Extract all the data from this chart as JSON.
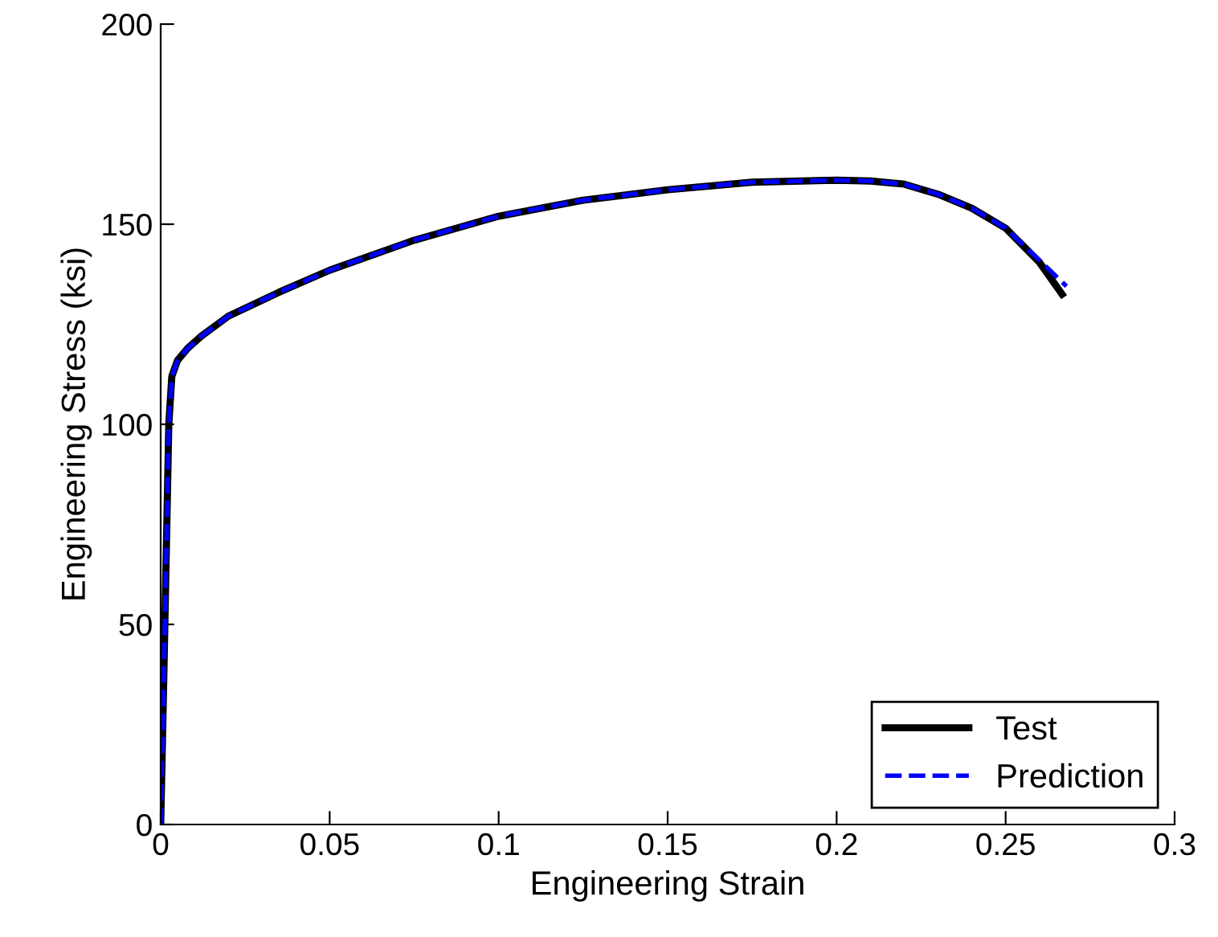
{
  "chart_data": {
    "type": "line",
    "xlabel": "Engineering Strain",
    "ylabel": "Engineering Stress (ksi)",
    "xlim": [
      0,
      0.3
    ],
    "ylim": [
      0,
      200
    ],
    "xticks": [
      0,
      0.05,
      0.1,
      0.15,
      0.2,
      0.25,
      0.3
    ],
    "yticks": [
      0,
      50,
      100,
      150,
      200
    ],
    "grid": false,
    "legend": "bottom right",
    "series": [
      {
        "name": "Test",
        "color": "#000000",
        "line_style": "solid",
        "x": [
          0,
          0.001,
          0.0024,
          0.0033,
          0.005,
          0.008,
          0.012,
          0.02,
          0.035,
          0.05,
          0.075,
          0.1,
          0.125,
          0.15,
          0.175,
          0.2,
          0.21,
          0.22,
          0.23,
          0.24,
          0.25,
          0.26,
          0.2667
        ],
        "values": [
          0,
          40,
          100,
          112,
          116,
          119,
          122,
          127,
          133,
          138.5,
          146,
          152,
          156,
          158.6,
          160.5,
          161,
          160.8,
          160,
          157.5,
          154,
          149,
          140.5,
          132.5
        ]
      },
      {
        "name": "Prediction",
        "color": "#0000ff",
        "line_style": "dashed",
        "x": [
          0,
          0.001,
          0.0024,
          0.0033,
          0.005,
          0.008,
          0.012,
          0.02,
          0.035,
          0.05,
          0.075,
          0.1,
          0.125,
          0.15,
          0.175,
          0.2,
          0.21,
          0.22,
          0.23,
          0.24,
          0.25,
          0.26,
          0.268
        ],
        "values": [
          0,
          40,
          100,
          112,
          116,
          119,
          122,
          127,
          133,
          138.5,
          146,
          152,
          156,
          158.6,
          160.5,
          161,
          160.8,
          160,
          157.5,
          154,
          149,
          141,
          134.5
        ]
      }
    ]
  }
}
